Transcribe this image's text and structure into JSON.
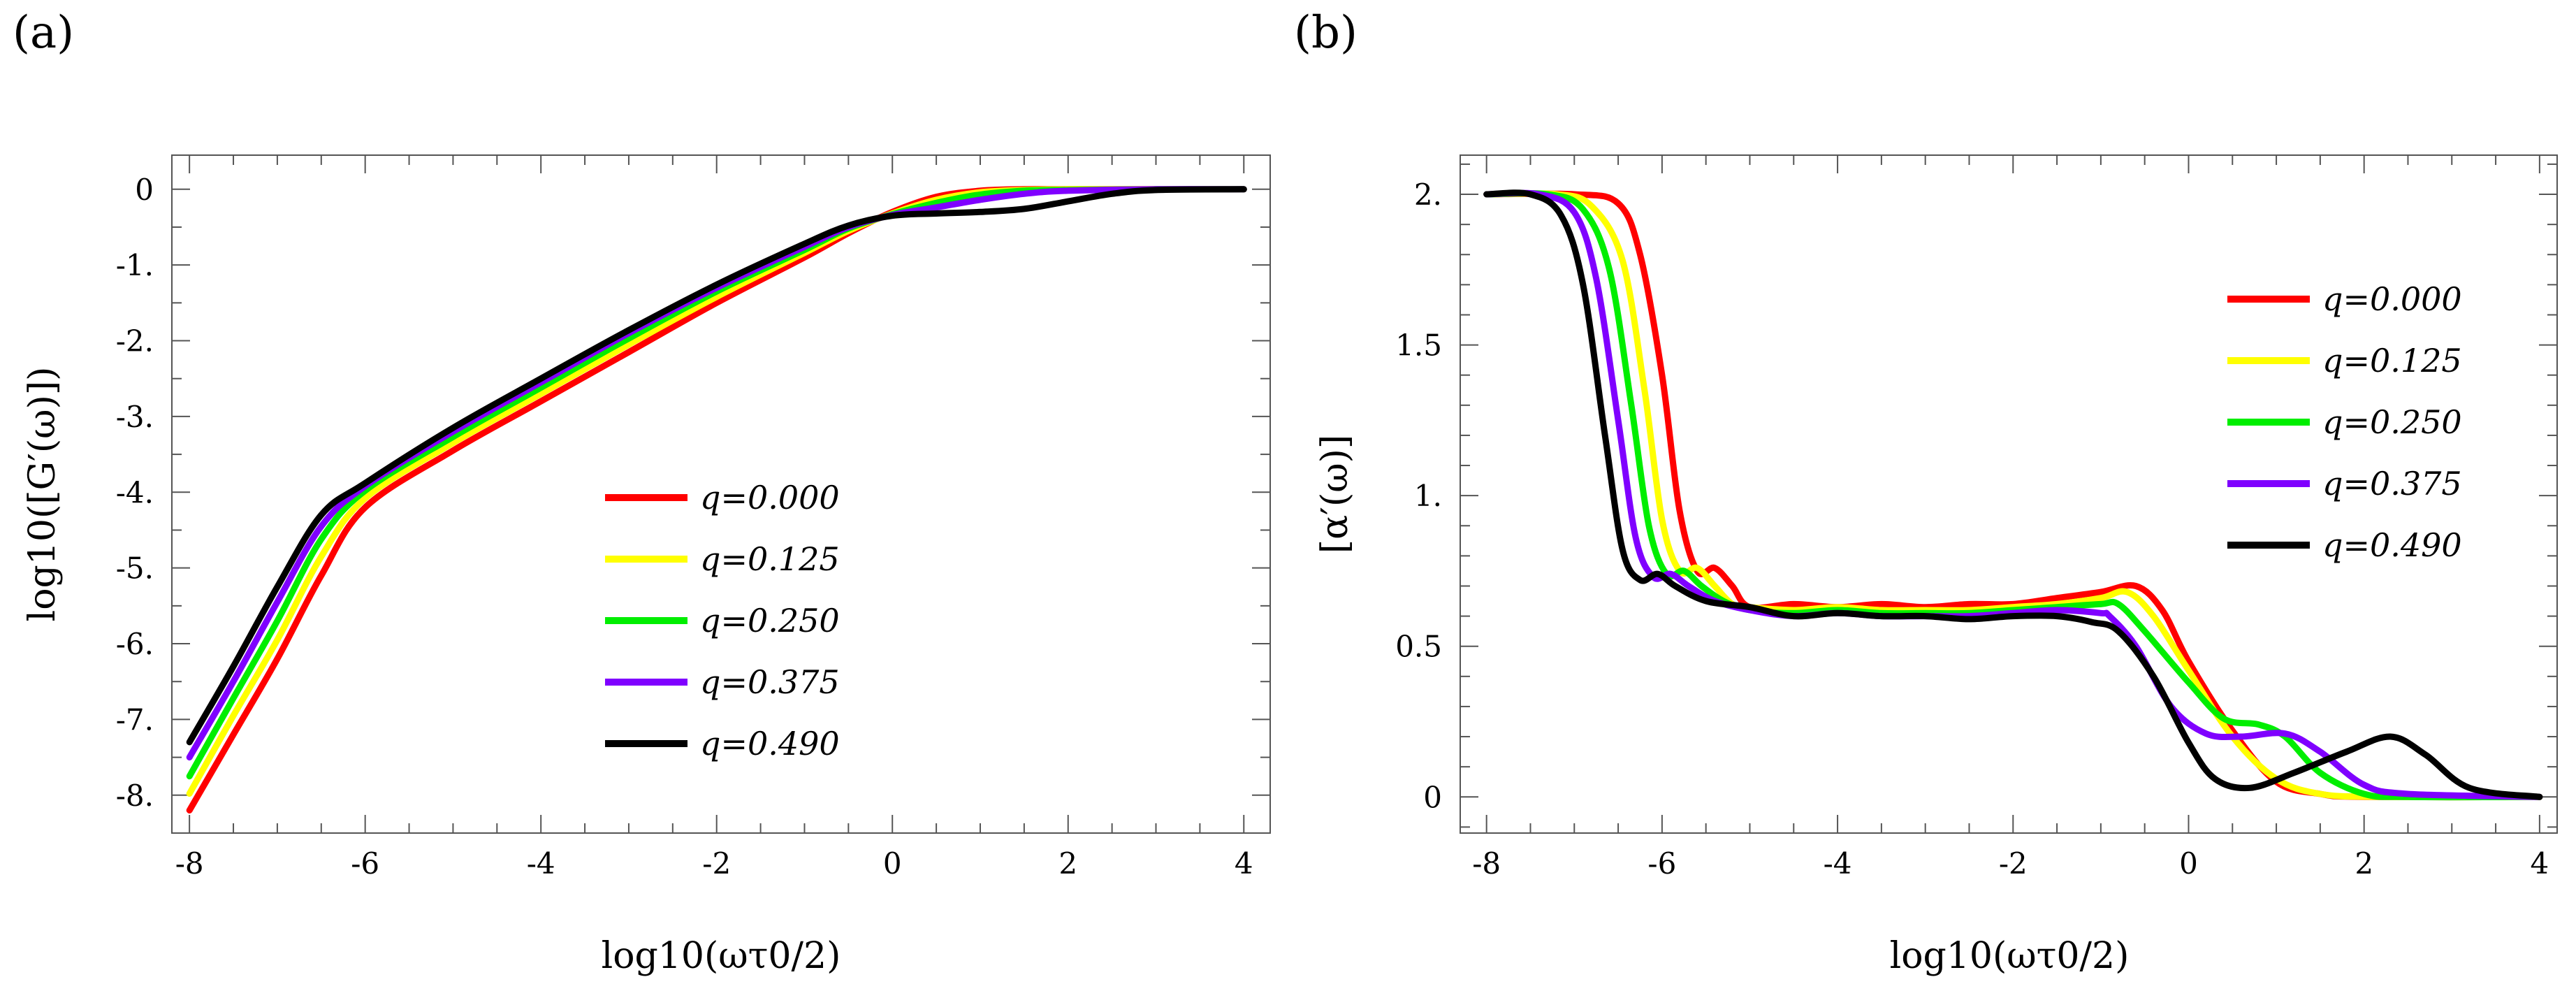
{
  "chart_data": [
    {
      "panel": "(a)",
      "type": "line",
      "xlabel": "log10(ωτ0/2)",
      "ylabel": "log10([G′(ω)])",
      "xlim": [
        -8.2,
        4.3
      ],
      "ylim": [
        -8.5,
        0.45
      ],
      "xticks": [
        -8,
        -6,
        -4,
        -2,
        0,
        2,
        4
      ],
      "xtick_labels": [
        "-8",
        "-6",
        "-4",
        "-2",
        "0",
        "2",
        "4"
      ],
      "yticks": [
        0,
        -1,
        -2,
        -3,
        -4,
        -5,
        -6,
        -7,
        -8
      ],
      "ytick_labels": [
        "0",
        "-1.",
        "-2.",
        "-3.",
        "-4.",
        "-5.",
        "-6.",
        "-7.",
        "-8."
      ],
      "legend_position": "center-right",
      "series": [
        {
          "name": "q=0.000",
          "color": "#ff0000",
          "x": [
            -8,
            -7.5,
            -7,
            -6.5,
            -6,
            -5,
            -4,
            -3,
            -2,
            -1,
            -0.5,
            0,
            0.5,
            1,
            1.5,
            2,
            3,
            4
          ],
          "y": [
            -8.2,
            -7.2,
            -6.2,
            -5.1,
            -4.2,
            -3.45,
            -2.8,
            -2.15,
            -1.5,
            -0.9,
            -0.58,
            -0.3,
            -0.1,
            -0.02,
            0,
            0,
            0,
            0
          ]
        },
        {
          "name": "q=0.125",
          "color": "#ffff00",
          "x": [
            -8,
            -7.5,
            -7,
            -6.5,
            -6,
            -5,
            -4,
            -3,
            -2,
            -1,
            -0.5,
            0,
            0.5,
            1,
            1.5,
            2,
            3,
            4
          ],
          "y": [
            -7.98,
            -6.95,
            -5.95,
            -4.85,
            -4.08,
            -3.35,
            -2.7,
            -2.05,
            -1.42,
            -0.84,
            -0.55,
            -0.32,
            -0.14,
            -0.04,
            -0.01,
            0,
            0,
            0
          ]
        },
        {
          "name": "q=0.250",
          "color": "#00ee00",
          "x": [
            -8,
            -7.5,
            -7,
            -6.5,
            -6,
            -5,
            -4,
            -3,
            -2,
            -1,
            -0.5,
            0,
            0.5,
            1,
            1.5,
            2,
            3,
            4
          ],
          "y": [
            -7.75,
            -6.72,
            -5.7,
            -4.62,
            -3.98,
            -3.27,
            -2.62,
            -1.97,
            -1.35,
            -0.8,
            -0.52,
            -0.33,
            -0.18,
            -0.07,
            -0.02,
            -0.01,
            0,
            0
          ]
        },
        {
          "name": "q=0.375",
          "color": "#7f00ff",
          "x": [
            -8,
            -7.5,
            -7,
            -6.5,
            -6,
            -5,
            -4,
            -3,
            -2,
            -1,
            -0.5,
            0,
            0.5,
            1,
            1.5,
            2,
            3,
            4
          ],
          "y": [
            -7.5,
            -6.5,
            -5.45,
            -4.45,
            -3.92,
            -3.2,
            -2.55,
            -1.9,
            -1.3,
            -0.76,
            -0.5,
            -0.34,
            -0.24,
            -0.14,
            -0.06,
            -0.02,
            0,
            0
          ]
        },
        {
          "name": "q=0.490",
          "color": "#000000",
          "x": [
            -8,
            -7.5,
            -7,
            -6.5,
            -6,
            -5,
            -4,
            -3,
            -2,
            -1,
            -0.5,
            0,
            0.5,
            1,
            1.5,
            2,
            2.5,
            3,
            4
          ],
          "y": [
            -7.3,
            -6.3,
            -5.25,
            -4.3,
            -3.88,
            -3.15,
            -2.5,
            -1.86,
            -1.26,
            -0.72,
            -0.48,
            -0.35,
            -0.32,
            -0.3,
            -0.26,
            -0.16,
            -0.06,
            -0.01,
            0
          ]
        }
      ]
    },
    {
      "panel": "(b)",
      "type": "line",
      "xlabel": "log10(ωτ0/2)",
      "ylabel": "[α′(ω)]",
      "xlim": [
        -8.3,
        4.2
      ],
      "ylim": [
        -0.12,
        2.13
      ],
      "xticks": [
        -8,
        -6,
        -4,
        -2,
        0,
        2,
        4
      ],
      "xtick_labels": [
        "-8",
        "-6",
        "-4",
        "-2",
        "0",
        "2",
        "4"
      ],
      "yticks": [
        0,
        0.5,
        1,
        1.5,
        2
      ],
      "ytick_labels": [
        "0",
        "0.5",
        "1.",
        "1.5",
        "2."
      ],
      "legend_position": "top-right",
      "series": [
        {
          "name": "q=0.000",
          "color": "#ff0000",
          "x": [
            -8,
            -7,
            -6.5,
            -6.25,
            -6,
            -5.8,
            -5.6,
            -5.4,
            -5.2,
            -5,
            -4.5,
            -4,
            -3.5,
            -3,
            -2.5,
            -2,
            -1.5,
            -1,
            -0.6,
            -0.3,
            0,
            0.5,
            1,
            1.5,
            2,
            4
          ],
          "y": [
            2,
            2,
            1.97,
            1.8,
            1.4,
            0.95,
            0.75,
            0.76,
            0.7,
            0.63,
            0.64,
            0.63,
            0.64,
            0.63,
            0.64,
            0.64,
            0.66,
            0.68,
            0.7,
            0.62,
            0.45,
            0.22,
            0.05,
            0.01,
            0,
            0
          ]
        },
        {
          "name": "q=0.125",
          "color": "#ffff00",
          "x": [
            -8,
            -7.2,
            -6.8,
            -6.45,
            -6.2,
            -6,
            -5.8,
            -5.6,
            -5.4,
            -5.2,
            -5,
            -4.5,
            -4,
            -3.5,
            -3,
            -2.5,
            -2,
            -1.5,
            -1,
            -0.7,
            -0.4,
            0,
            0.5,
            1,
            1.5,
            2.2,
            4
          ],
          "y": [
            2,
            2,
            1.96,
            1.78,
            1.35,
            0.92,
            0.75,
            0.76,
            0.7,
            0.64,
            0.63,
            0.62,
            0.63,
            0.62,
            0.62,
            0.62,
            0.63,
            0.64,
            0.66,
            0.68,
            0.6,
            0.42,
            0.2,
            0.06,
            0.01,
            0,
            0
          ]
        },
        {
          "name": "q=0.250",
          "color": "#00ee00",
          "x": [
            -8,
            -7.3,
            -6.9,
            -6.6,
            -6.35,
            -6.15,
            -5.95,
            -5.75,
            -5.55,
            -5.3,
            -5,
            -4.5,
            -4,
            -3.5,
            -3,
            -2.5,
            -2,
            -1.5,
            -1,
            -0.8,
            -0.5,
            0,
            0.4,
            0.8,
            1.1,
            1.5,
            2,
            2.5,
            4
          ],
          "y": [
            2,
            2,
            1.95,
            1.75,
            1.3,
            0.9,
            0.74,
            0.75,
            0.7,
            0.65,
            0.62,
            0.61,
            0.62,
            0.61,
            0.61,
            0.61,
            0.62,
            0.63,
            0.64,
            0.64,
            0.55,
            0.38,
            0.26,
            0.24,
            0.2,
            0.08,
            0.01,
            0,
            0
          ]
        },
        {
          "name": "q=0.375",
          "color": "#7f00ff",
          "x": [
            -8,
            -7.4,
            -7,
            -6.75,
            -6.5,
            -6.3,
            -6.1,
            -5.9,
            -5.7,
            -5.4,
            -5,
            -4.5,
            -4,
            -3.5,
            -3,
            -2.5,
            -2,
            -1.5,
            -1,
            -0.9,
            -0.6,
            -0.2,
            0.2,
            0.6,
            1.1,
            1.5,
            2,
            2.5,
            4
          ],
          "y": [
            2,
            2,
            1.94,
            1.72,
            1.25,
            0.86,
            0.73,
            0.74,
            0.7,
            0.65,
            0.62,
            0.6,
            0.61,
            0.6,
            0.6,
            0.6,
            0.61,
            0.62,
            0.61,
            0.6,
            0.5,
            0.3,
            0.21,
            0.2,
            0.21,
            0.15,
            0.04,
            0.01,
            0
          ]
        },
        {
          "name": "q=0.490",
          "color": "#000000",
          "x": [
            -8,
            -7.5,
            -7.15,
            -6.9,
            -6.65,
            -6.45,
            -6.25,
            -6.05,
            -5.85,
            -5.5,
            -5,
            -4.5,
            -4,
            -3.5,
            -3,
            -2.5,
            -2,
            -1.5,
            -1.1,
            -0.8,
            -0.4,
            0,
            0.3,
            0.7,
            1.2,
            1.8,
            2.3,
            2.7,
            3.2,
            4
          ],
          "y": [
            2,
            2,
            1.93,
            1.7,
            1.2,
            0.82,
            0.72,
            0.74,
            0.7,
            0.65,
            0.63,
            0.6,
            0.61,
            0.6,
            0.6,
            0.59,
            0.6,
            0.6,
            0.58,
            0.55,
            0.4,
            0.18,
            0.06,
            0.03,
            0.08,
            0.15,
            0.2,
            0.14,
            0.03,
            0
          ]
        }
      ]
    }
  ]
}
